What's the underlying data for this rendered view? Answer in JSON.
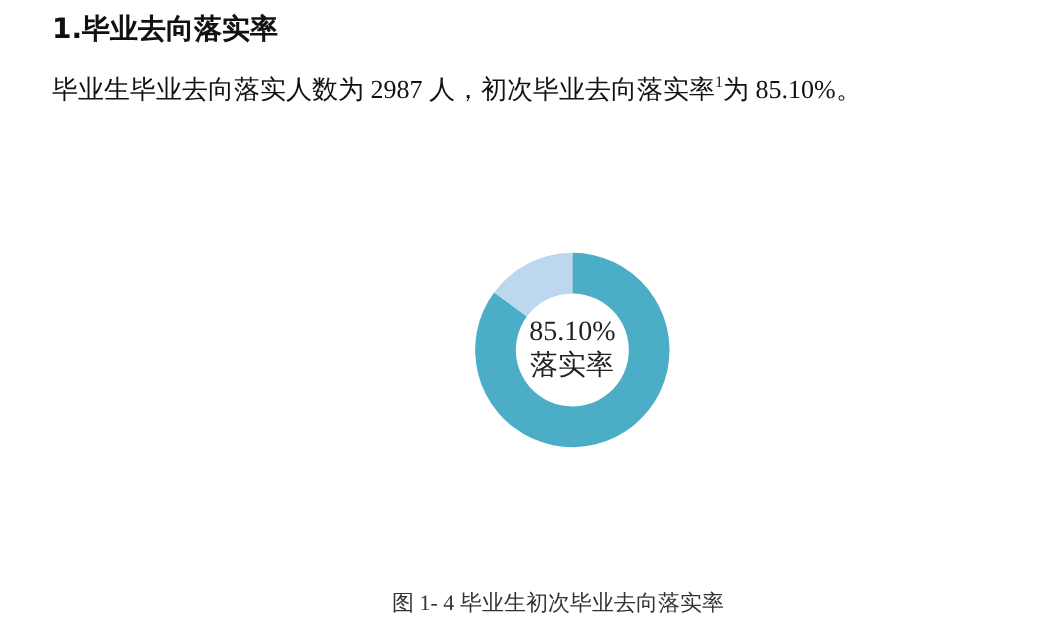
{
  "chart_data": {
    "type": "donut",
    "title": "1.毕业去向落实率",
    "subtitle": "毕业生毕业去向落实人数为 2987 人，初次毕业去向落实率$^{1}$为 85.10%。",
    "categories": [
      "落实率",
      null
    ],
    "values": [
      85.1,
      14.9
    ],
    "colors": [
      "#4badc6",
      "#bdd7ee"
    ],
    "value_labels": [
      "85.10%",
      null
    ],
    "annotations": [
      "图 1- 4  毕业生初次毕业去向落实率"
    ]
  }
}
